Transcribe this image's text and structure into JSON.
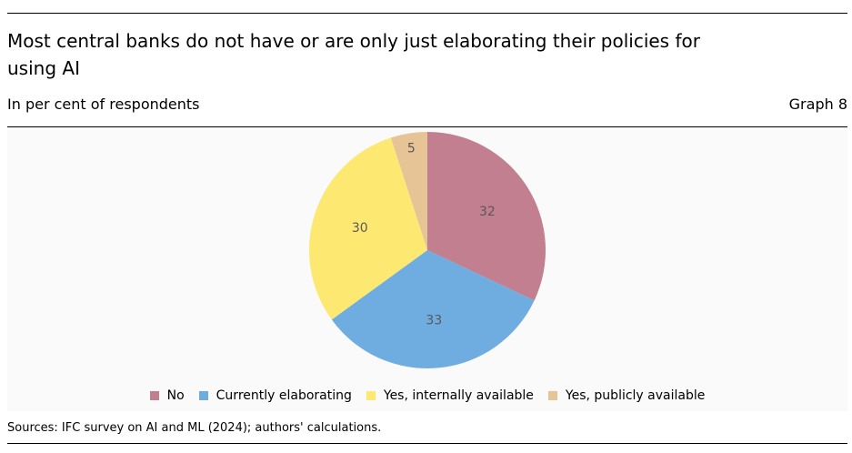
{
  "header": {
    "title": "Most central banks do not have or are only just elaborating their policies for using AI",
    "subtitle": "In per cent of respondents",
    "graph_number": "Graph 8"
  },
  "footer": {
    "sources": "Sources: IFC survey on AI and ML (2024); authors' calculations."
  },
  "chart_data": {
    "type": "pie",
    "title": "Most central banks do not have or are only just elaborating their policies for using AI",
    "subtitle": "In per cent of respondents",
    "start_angle": "12 o'clock",
    "direction": "clockwise",
    "legend_position": "bottom",
    "slices": [
      {
        "label": "No",
        "value": 32,
        "color": "#c17f8f"
      },
      {
        "label": "Currently elaborating",
        "value": 33,
        "color": "#6fade0"
      },
      {
        "label": "Yes, internally available",
        "value": 30,
        "color": "#fde872"
      },
      {
        "label": "Yes, publicly available",
        "value": 5,
        "color": "#e6c496"
      }
    ]
  }
}
